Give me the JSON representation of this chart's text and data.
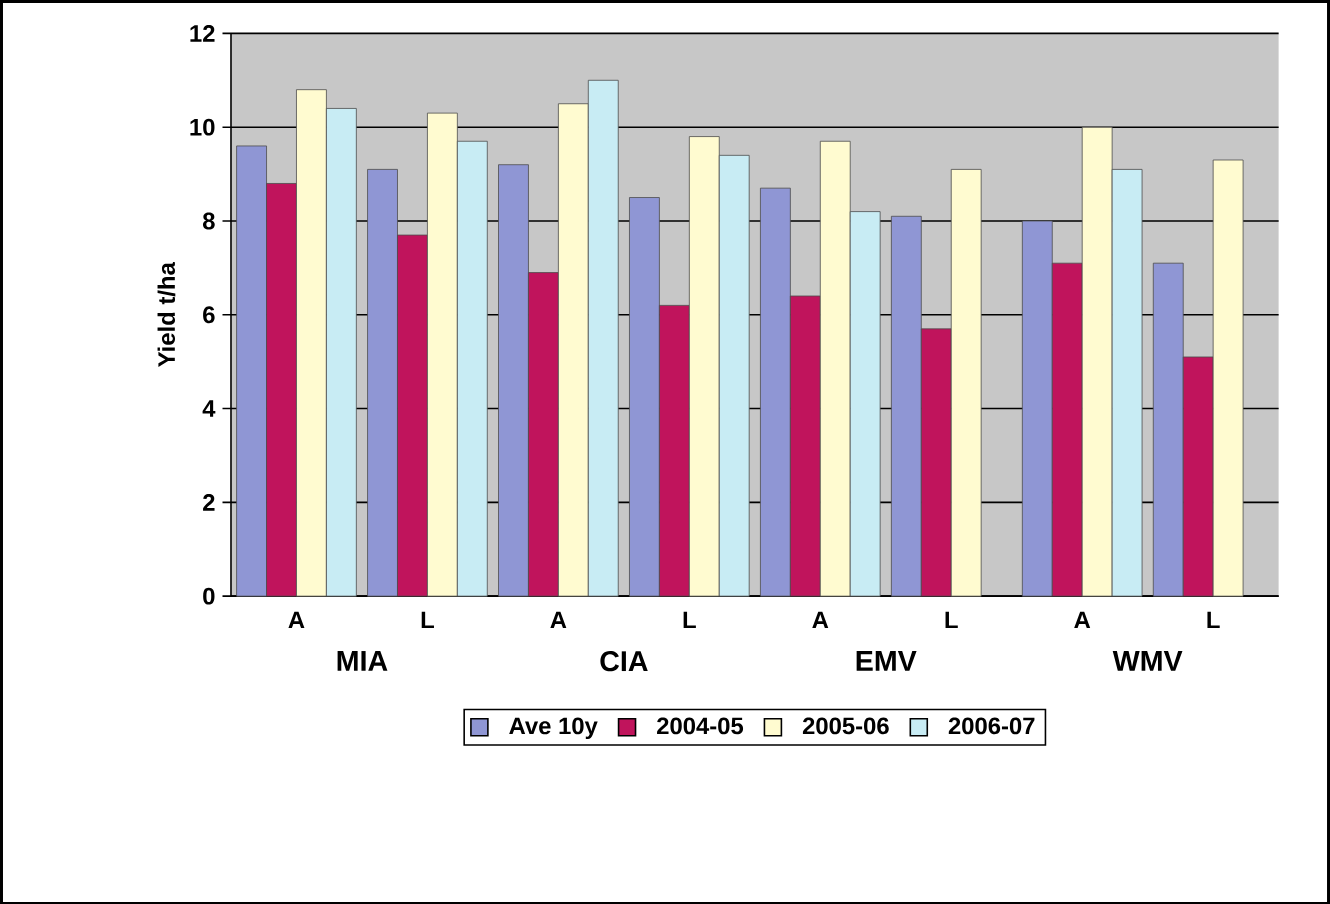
{
  "chart_data": {
    "type": "bar",
    "ylabel": "Yield t/ha",
    "categories": [
      "A",
      "L",
      "A",
      "L",
      "A",
      "L",
      "A",
      "L"
    ],
    "annotations": [
      "MIA",
      "CIA",
      "EMV",
      "WMV"
    ],
    "series": [
      {
        "name": "Ave 10y",
        "color": "#8f96d4",
        "values": [
          9.6,
          9.1,
          9.2,
          8.5,
          8.7,
          8.1,
          8.0,
          7.1
        ]
      },
      {
        "name": "2004-05",
        "color": "#c0145c",
        "values": [
          8.8,
          7.7,
          6.9,
          6.2,
          6.4,
          5.7,
          7.1,
          5.1
        ]
      },
      {
        "name": "2005-06",
        "color": "#fffbd0",
        "values": [
          10.8,
          10.3,
          10.5,
          9.8,
          9.7,
          9.1,
          10.0,
          9.3
        ]
      },
      {
        "name": "2006-07",
        "color": "#c8ecf4",
        "values": [
          10.4,
          9.7,
          11.0,
          9.4,
          8.2,
          null,
          9.1,
          null
        ]
      }
    ],
    "ylim": [
      0,
      12
    ],
    "yticks": [
      0,
      2,
      4,
      6,
      8,
      10,
      12
    ],
    "grid": "y",
    "legend": "bottom"
  }
}
